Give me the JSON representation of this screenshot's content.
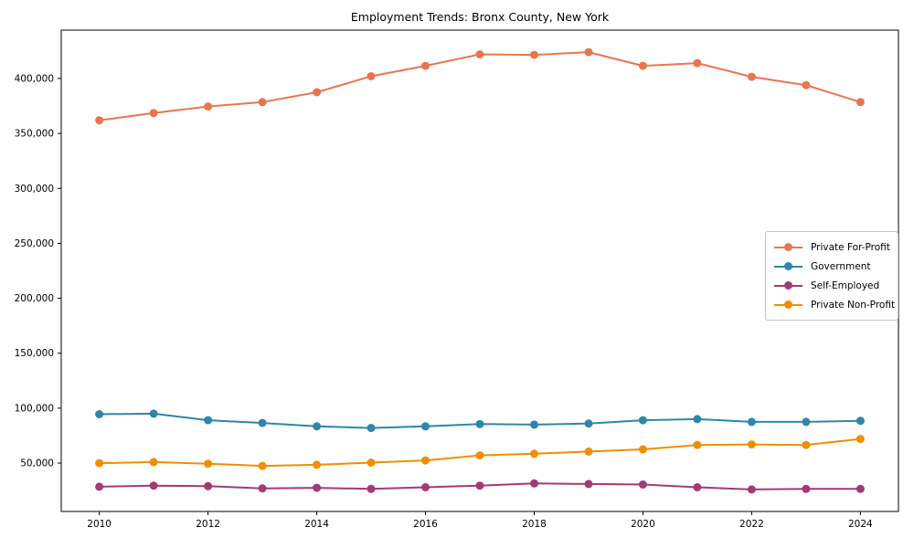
{
  "chart_data": {
    "type": "line",
    "title": "Employment Trends: Bronx County, New York",
    "xlabel": "",
    "ylabel": "",
    "grid": false,
    "legend_position": "center right",
    "marker": "circle",
    "x": [
      2010,
      2011,
      2012,
      2013,
      2014,
      2015,
      2016,
      2017,
      2018,
      2019,
      2020,
      2021,
      2022,
      2023,
      2024
    ],
    "xlim": [
      2009.3,
      2024.7
    ],
    "ylim": [
      6000,
      444000
    ],
    "xticks": [
      2010,
      2012,
      2014,
      2016,
      2018,
      2020,
      2022,
      2024
    ],
    "xtick_labels": [
      "2010",
      "2012",
      "2014",
      "2016",
      "2018",
      "2020",
      "2022",
      "2024"
    ],
    "yticks": [
      50000,
      100000,
      150000,
      200000,
      250000,
      300000,
      350000,
      400000
    ],
    "ytick_labels": [
      "50,000",
      "100,000",
      "150,000",
      "200,000",
      "250,000",
      "300,000",
      "350,000",
      "400,000"
    ],
    "series": [
      {
        "name": "Private For-Profit",
        "color": "#E8764D",
        "values": [
          362000,
          368500,
          374500,
          378500,
          387500,
          402000,
          411500,
          422000,
          421500,
          424000,
          411500,
          414000,
          401500,
          394000,
          378500
        ]
      },
      {
        "name": "Government",
        "color": "#2E86AB",
        "values": [
          94500,
          95000,
          89000,
          86500,
          83500,
          82000,
          83500,
          85500,
          85000,
          86000,
          89000,
          90000,
          87500,
          87500,
          88500
        ]
      },
      {
        "name": "Self-Employed",
        "color": "#A23B72",
        "values": [
          28500,
          29500,
          29000,
          27000,
          27500,
          26500,
          28000,
          29500,
          31500,
          31000,
          30500,
          28000,
          26000,
          26500,
          26500
        ]
      },
      {
        "name": "Private Non-Profit",
        "color": "#F18F01",
        "values": [
          50000,
          51000,
          49500,
          47500,
          48500,
          50500,
          52500,
          57000,
          58500,
          60500,
          62500,
          66500,
          67000,
          66500,
          72000
        ]
      }
    ]
  }
}
